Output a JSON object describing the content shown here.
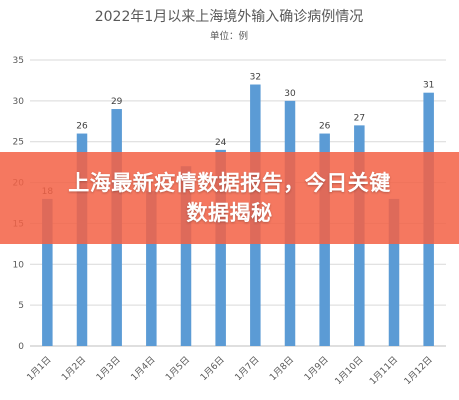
{
  "chart_data": {
    "type": "bar",
    "title": "2022年1月以来上海境外输入确诊病例情况",
    "subtitle": "单位：例",
    "categories": [
      "1月1日",
      "1月2日",
      "1月3日",
      "1月4日",
      "1月5日",
      "1月6日",
      "1月7日",
      "1月8日",
      "1月9日",
      "1月10日",
      "1月11日",
      "1月12日"
    ],
    "values": [
      18,
      26,
      29,
      19,
      22,
      24,
      32,
      30,
      26,
      27,
      18,
      31
    ],
    "data_labels": [
      "18",
      "26",
      "29",
      "",
      "",
      "24",
      "32",
      "30",
      "26",
      "27",
      "",
      "31"
    ],
    "yticks": [
      "0",
      "5",
      "10",
      "15",
      "20",
      "25",
      "30",
      "35"
    ],
    "ylim": [
      0,
      35
    ],
    "grid": true,
    "bar_color": "#5b9bd5"
  },
  "overlay": {
    "text": "上海最新疫情数据报告，今日关键数据揭秘",
    "color": "#f36246"
  }
}
